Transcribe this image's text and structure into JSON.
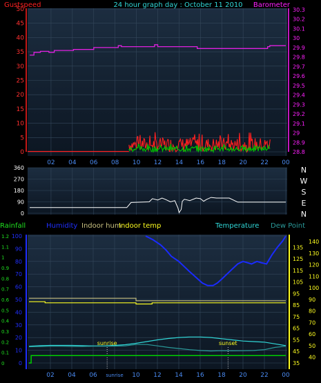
{
  "chart_data": [
    {
      "type": "line",
      "panel": "wind-barometer",
      "title": "24 hour graph day : October 11 2010",
      "left_label": "Gustspeed",
      "right_label": "Barometer",
      "x_ticks": [
        "02",
        "04",
        "06",
        "08",
        "10",
        "12",
        "14",
        "16",
        "18",
        "20",
        "22",
        "00"
      ],
      "y_left_ticks": [
        "0",
        "5",
        "10",
        "15",
        "20",
        "25",
        "30",
        "35",
        "40",
        "45",
        "50"
      ],
      "y_left_range": [
        0,
        50
      ],
      "y_right_ticks": [
        "28.8",
        "28.9",
        "29",
        "29.1",
        "29.2",
        "29.3",
        "29.4",
        "29.5",
        "29.6",
        "29.7",
        "29.8",
        "29.9",
        "30",
        "30.1",
        "30.2",
        "30.3"
      ],
      "y_right_range": [
        28.8,
        30.3
      ],
      "grid": true,
      "series": [
        {
          "name": "Barometer",
          "color": "#e020e0",
          "x": [
            0,
            0.4,
            0.4,
            1,
            1,
            1.8,
            1.8,
            2.3,
            2.3,
            4.1,
            4.1,
            6,
            6,
            8.3,
            8.3,
            8.6,
            8.6,
            11.7,
            11.7,
            12,
            12,
            15.7,
            15.7,
            22.3,
            22.3,
            22.5,
            22.5,
            24
          ],
          "y": [
            29.82,
            29.82,
            29.85,
            29.85,
            29.86,
            29.86,
            29.85,
            29.85,
            29.87,
            29.87,
            29.88,
            29.88,
            29.9,
            29.9,
            29.92,
            29.92,
            29.91,
            29.91,
            29.93,
            29.93,
            29.91,
            29.91,
            29.89,
            29.89,
            29.91,
            29.91,
            29.92,
            29.92
          ]
        },
        {
          "name": "Gust",
          "color": "#ff2020",
          "x_range": [
            9.3,
            22.6
          ],
          "typical_range": [
            0,
            5
          ],
          "peak": 7
        },
        {
          "name": "Wind",
          "color": "#00c000",
          "x_range": [
            9.3,
            22.6
          ],
          "typical_range": [
            0,
            2
          ],
          "peak": 3
        }
      ]
    },
    {
      "type": "line",
      "panel": "wind-direction",
      "y_left_ticks": [
        "0",
        "90",
        "180",
        "270",
        "360"
      ],
      "y_range": [
        0,
        360
      ],
      "compass_labels": [
        "N",
        "W",
        "S",
        "E",
        "N"
      ],
      "x_ticks": [
        "02",
        "04",
        "06",
        "08",
        "10",
        "12",
        "14",
        "16",
        "18",
        "20",
        "22",
        "00"
      ],
      "series": [
        {
          "name": "Direction",
          "color": "#ffffff",
          "x": [
            0,
            9.1,
            9.5,
            11.2,
            11.5,
            12,
            12.4,
            12.7,
            13.2,
            13.6,
            13.9,
            14,
            14.2,
            14.3,
            14.5,
            15,
            15.6,
            16,
            16.3,
            16.6,
            17,
            17.5,
            18.7,
            19.5,
            24
          ],
          "y": [
            45,
            45,
            85,
            90,
            115,
            105,
            120,
            110,
            90,
            100,
            40,
            5,
            30,
            95,
            110,
            100,
            120,
            115,
            95,
            110,
            125,
            120,
            120,
            88,
            88
          ]
        }
      ]
    },
    {
      "type": "line",
      "panel": "temperature-humidity-rain",
      "legend": [
        "Rainfall",
        "Humidity",
        "Indoor hum",
        "Indoor temp",
        "Temperature",
        "Dew Point"
      ],
      "y_left_ticks": [
        "0",
        "0.1",
        "0.2",
        "0.3",
        "0.4",
        "0.5",
        "0.6",
        "0.7",
        "0.8",
        "0.9",
        "1",
        "1.1",
        "1.2"
      ],
      "y_humidity_ticks": [
        "0",
        "10",
        "20",
        "30",
        "40",
        "50",
        "60",
        "70",
        "80",
        "90",
        "100"
      ],
      "y_right_ticks": [
        "35",
        "40",
        "45",
        "50",
        "55",
        "60",
        "65",
        "70",
        "75",
        "80",
        "85",
        "90",
        "95",
        "100",
        "105",
        "110",
        "115",
        "120",
        "125",
        "130",
        "135",
        "140"
      ],
      "x_ticks": [
        "02",
        "04",
        "06",
        "sunrise",
        "10",
        "12",
        "14",
        "16",
        "18",
        "20",
        "22",
        "00"
      ],
      "annotations": {
        "sunrise": "sunrise",
        "sunset": "sunset"
      },
      "sunrise_hour": 7.3,
      "sunset_hour": 18.6,
      "series": [
        {
          "name": "Rainfall",
          "color": "#00d000",
          "x": [
            0,
            0.2,
            0.2,
            24
          ],
          "y": [
            0,
            0,
            0.07,
            0.07
          ]
        },
        {
          "name": "Humidity",
          "color": "#1a2bff",
          "x": [
            10.9,
            11.6,
            12.3,
            12.8,
            13.3,
            14,
            14.5,
            15,
            15.4,
            15.8,
            16.2,
            16.7,
            17.2,
            17.6,
            18,
            18.5,
            19,
            19.5,
            20,
            20.4,
            20.8,
            21.3,
            21.7,
            22.2,
            22.7,
            23.2,
            23.7,
            24
          ],
          "y": [
            100,
            97,
            93,
            89,
            84,
            80,
            76,
            72,
            69,
            66,
            63,
            61,
            61,
            63,
            66,
            70,
            74,
            78,
            80,
            79,
            78,
            80,
            79,
            78,
            85,
            91,
            96,
            100
          ]
        },
        {
          "name": "Indoor hum",
          "color": "#c8c080",
          "x": [
            0,
            10,
            10,
            24
          ],
          "y": [
            51,
            51,
            49,
            49
          ]
        },
        {
          "name": "Indoor temp",
          "color": "#ffff20",
          "x": [
            0,
            1.5,
            1.5,
            10,
            10,
            11.5,
            11.5,
            24
          ],
          "y": [
            88,
            88,
            87,
            87,
            86,
            86,
            87,
            87
          ]
        },
        {
          "name": "Temperature",
          "color": "#30d8d8",
          "x": [
            0,
            1,
            2,
            3,
            4,
            5,
            6,
            7,
            8,
            9,
            10,
            11,
            12,
            13,
            14,
            15,
            16,
            17,
            18,
            19,
            20,
            21,
            22,
            23,
            24
          ],
          "y": [
            49.5,
            50,
            50.2,
            50.2,
            50.2,
            50,
            49.8,
            49.8,
            50.2,
            50.8,
            52,
            53.5,
            55,
            56.2,
            57,
            57.5,
            57.5,
            57,
            56,
            55,
            54,
            53.5,
            53,
            51.5,
            50
          ]
        },
        {
          "name": "Dew Point",
          "color": "#2a9a9a",
          "x": [
            0,
            1,
            2,
            3,
            4,
            5,
            6,
            7,
            8,
            9,
            10,
            11,
            12,
            13,
            14,
            15,
            16,
            17,
            18,
            19,
            20,
            21,
            22,
            23,
            24
          ],
          "y": [
            49,
            49.2,
            49.5,
            49.5,
            49.3,
            49.3,
            49.5,
            49.5,
            49.6,
            49.8,
            51,
            51,
            49.8,
            48.5,
            47.5,
            46.5,
            45.8,
            45.4,
            45.6,
            45.5,
            45.6,
            45.8,
            46.5,
            48.5,
            49.5
          ]
        }
      ]
    }
  ]
}
